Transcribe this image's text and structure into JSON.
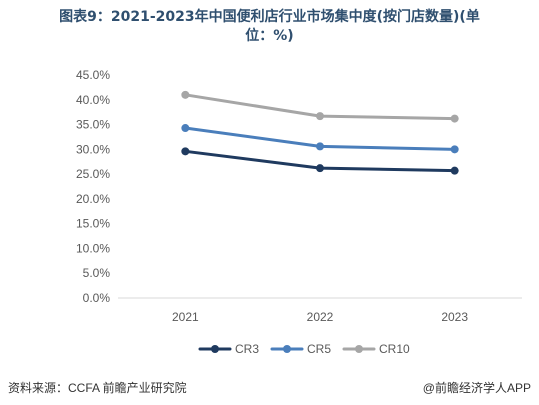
{
  "title_line1": "图表9：2021-2023年中国便利店行业市场集中度(按门店数量)(单",
  "title_line2": "位：%)",
  "source": "资料来源：CCFA 前瞻产业研究院",
  "brand": "@前瞻经济学人APP",
  "chart_data": {
    "type": "line",
    "title": "2021-2023年中国便利店行业市场集中度(按门店数量)",
    "categories": [
      "2021",
      "2022",
      "2023"
    ],
    "ylim": [
      0,
      45
    ],
    "yticks": [
      "0.0%",
      "5.0%",
      "10.0%",
      "15.0%",
      "20.0%",
      "25.0%",
      "30.0%",
      "35.0%",
      "40.0%",
      "45.0%"
    ],
    "grid": false,
    "legend": "bottom",
    "series": [
      {
        "name": "CR3",
        "values": [
          29.6,
          26.2,
          25.7
        ],
        "color": "#1f3a5f"
      },
      {
        "name": "CR5",
        "values": [
          34.3,
          30.6,
          30.0
        ],
        "color": "#4a7ebb"
      },
      {
        "name": "CR10",
        "values": [
          41.0,
          36.7,
          36.2
        ],
        "color": "#a6a6a6"
      }
    ]
  }
}
